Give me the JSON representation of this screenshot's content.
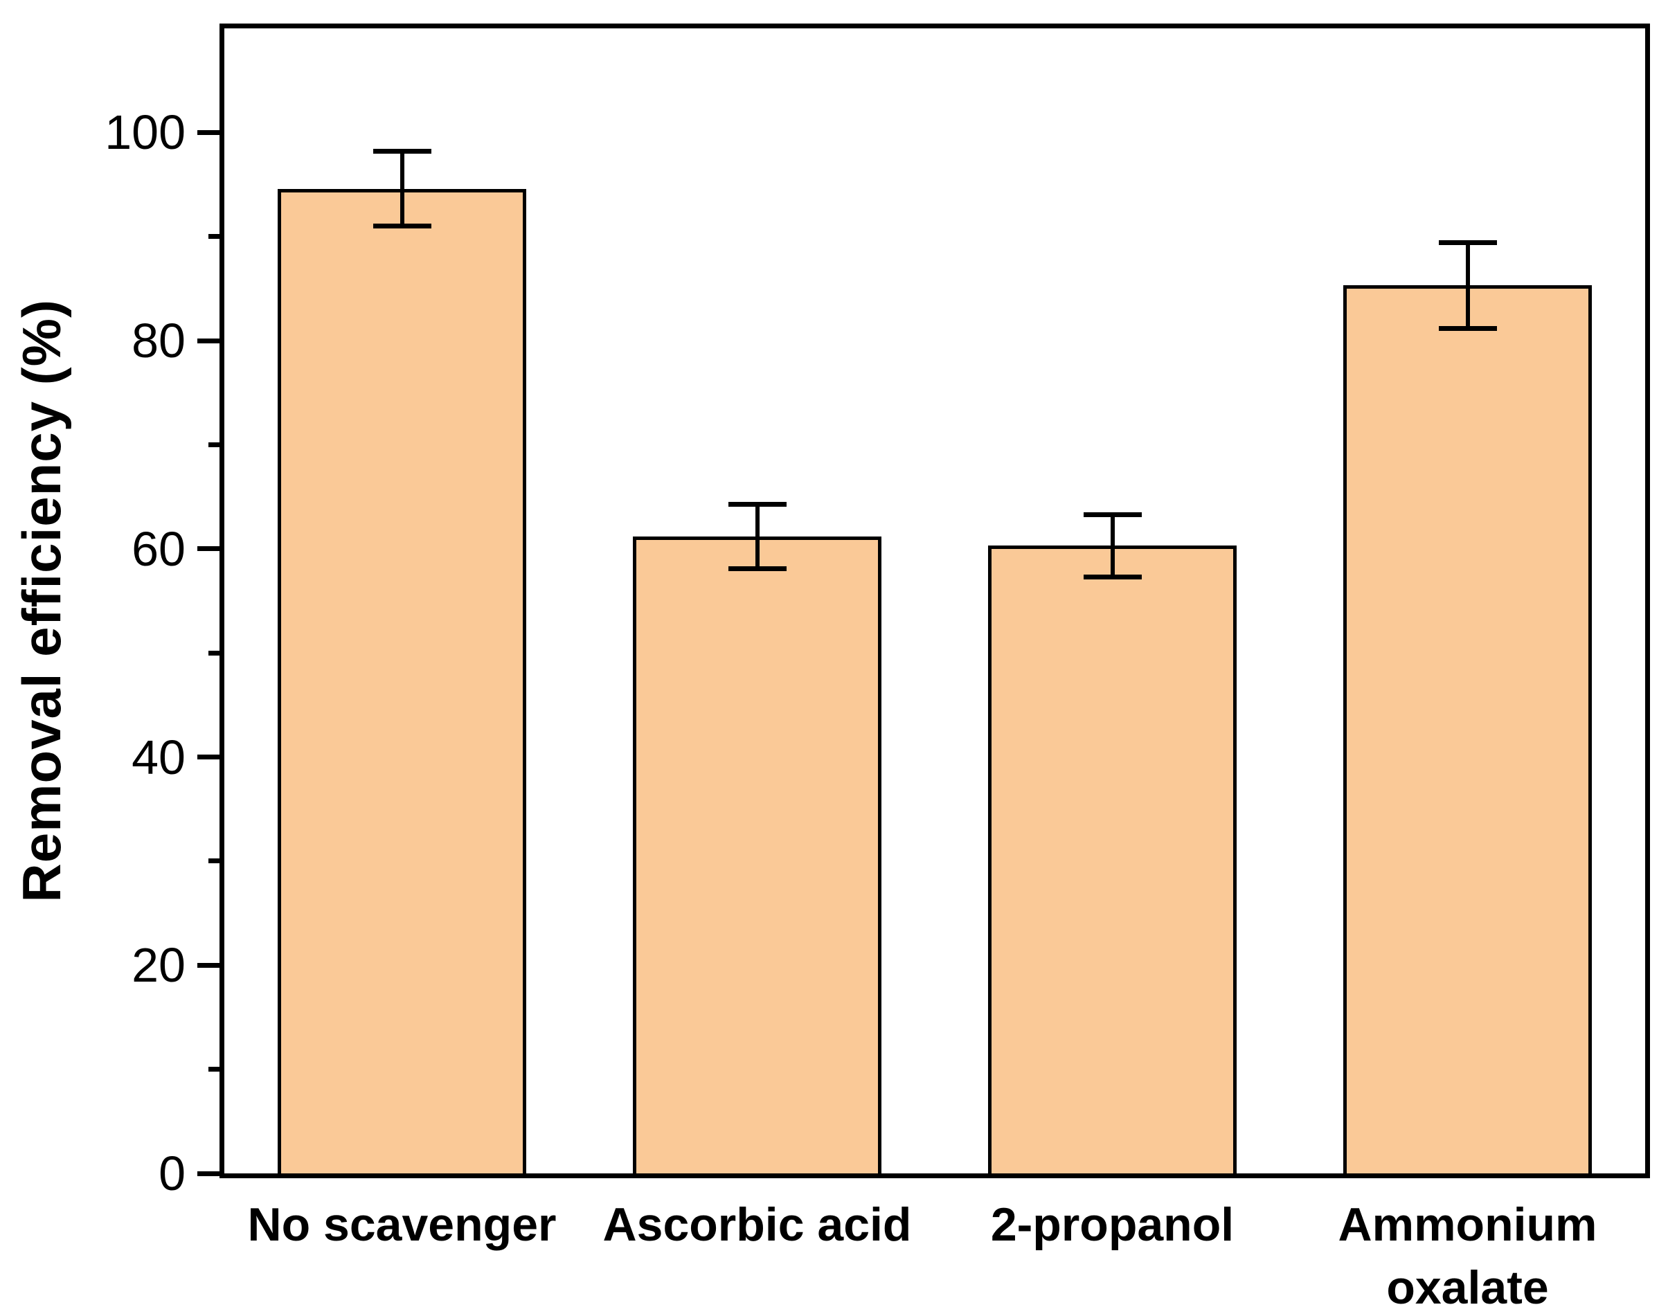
{
  "chart_data": {
    "type": "bar",
    "title": "",
    "ylabel": "Removal efficiency  (%)",
    "xlabel": "",
    "categories": [
      "No scavenger",
      "Ascorbic acid",
      "2-propanol",
      "Ammonium\noxalate"
    ],
    "values": [
      94.6,
      61.2,
      60.3,
      85.3
    ],
    "errors": [
      3.6,
      3.1,
      3.0,
      4.1
    ],
    "ylim": [
      0,
      110
    ],
    "yticks_major": [
      0,
      20,
      40,
      60,
      80,
      100
    ],
    "yticks_minor": [
      10,
      30,
      50,
      70,
      90
    ],
    "grid": false,
    "legend_position": "none",
    "bar_fill_color": "#FAC997",
    "bar_edge_color": "#000000",
    "axis_color": "#000000"
  }
}
